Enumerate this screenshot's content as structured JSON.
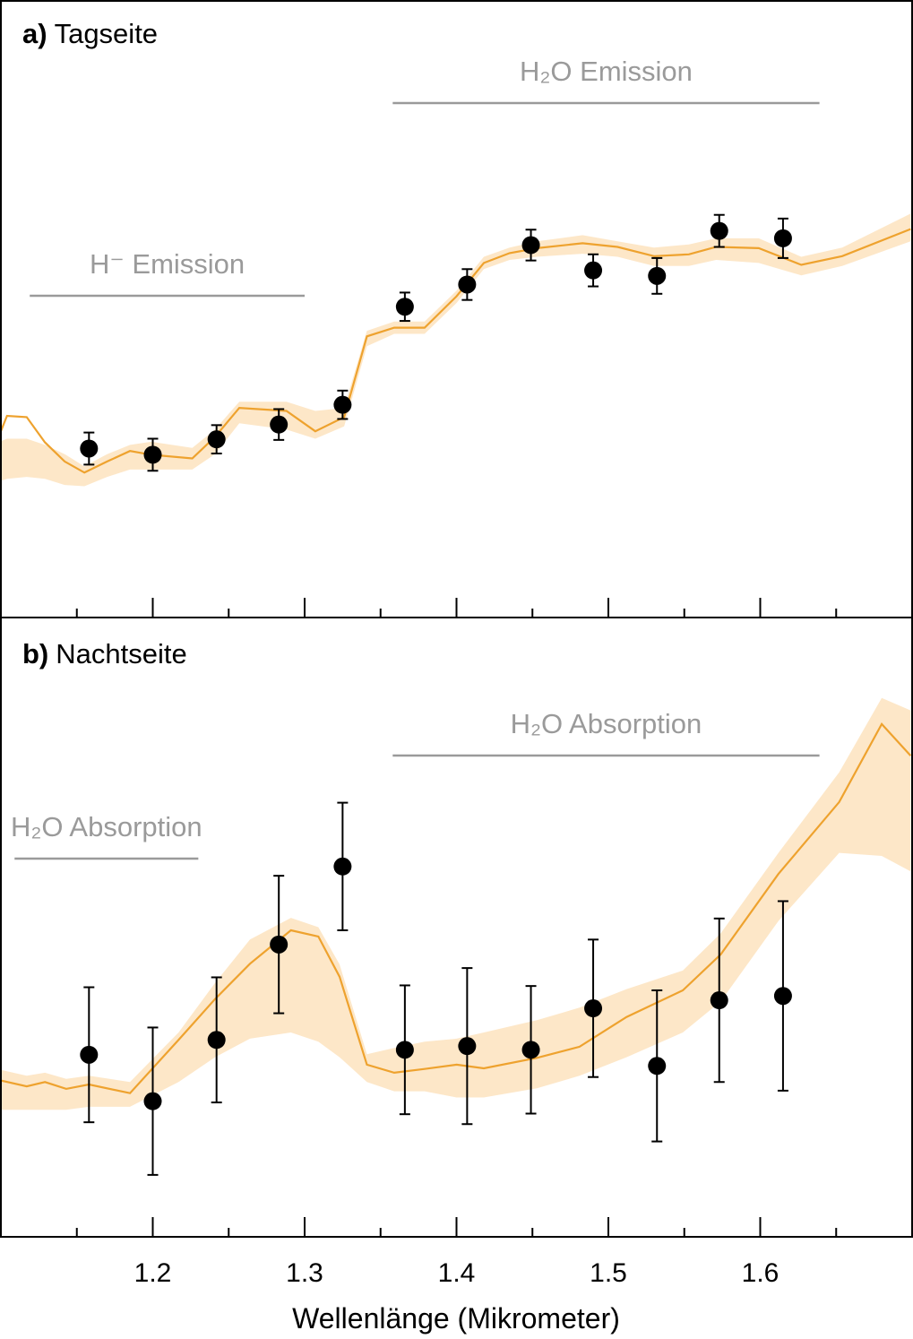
{
  "chart_data": {
    "type": "scatter",
    "xlabel": "Wellenlänge (Mikrometer)",
    "xlim": [
      1.1,
      1.7
    ],
    "xticks": [
      "1.2",
      "1.3",
      "1.4",
      "1.5",
      "1.6"
    ],
    "xtick_values": [
      1.2,
      1.3,
      1.4,
      1.5,
      1.6
    ],
    "minor_tick_step": 0.05,
    "grid": false,
    "colors": {
      "model_line": "#eea22e",
      "model_band": "#fde7c8",
      "points": "#000000",
      "annotation": "#9a9a9a"
    },
    "panels": [
      {
        "label_letter": "a)",
        "label_text": "Tagseite",
        "ylim": [
          0,
          100
        ],
        "annotations": [
          {
            "text": "H₂O Emission",
            "x_range": [
              1.358,
              1.639
            ]
          },
          {
            "text": "H⁻ Emission",
            "x_range": [
              1.119,
              1.3
            ]
          }
        ],
        "points": {
          "x": [
            1.158,
            1.2,
            1.242,
            1.283,
            1.325,
            1.366,
            1.407,
            1.449,
            1.49,
            1.532,
            1.573,
            1.615
          ],
          "y": [
            27.4,
            26.4,
            28.9,
            31.3,
            34.5,
            50.4,
            54.0,
            60.4,
            56.3,
            55.4,
            62.7,
            61.5
          ],
          "err": [
            2.6,
            2.6,
            2.3,
            2.5,
            2.3,
            2.3,
            2.5,
            2.5,
            2.6,
            2.9,
            2.6,
            3.2
          ]
        },
        "model": {
          "x": [
            1.099,
            1.104,
            1.117,
            1.129,
            1.142,
            1.155,
            1.17,
            1.185,
            1.199,
            1.226,
            1.241,
            1.257,
            1.288,
            1.307,
            1.326,
            1.341,
            1.359,
            1.379,
            1.4,
            1.418,
            1.435,
            1.453,
            1.483,
            1.506,
            1.53,
            1.553,
            1.571,
            1.599,
            1.627,
            1.654,
            1.699
          ],
          "y": [
            29.6,
            32.7,
            32.5,
            28.4,
            25.3,
            23.5,
            25.3,
            27.0,
            26.4,
            25.8,
            29.3,
            34.0,
            33.5,
            30.2,
            32.5,
            45.6,
            47.0,
            47.0,
            52.1,
            57.5,
            59.1,
            59.9,
            60.7,
            60.1,
            58.6,
            58.9,
            60.1,
            59.9,
            57.2,
            58.6,
            63.0
          ],
          "band_low": [
            22.1,
            22.5,
            22.8,
            22.5,
            21.5,
            21.3,
            22.8,
            24,
            24,
            24,
            26.5,
            31.5,
            30.5,
            29,
            31,
            44,
            46,
            46,
            51,
            56.5,
            58,
            58.5,
            59,
            58.5,
            57,
            57,
            58,
            57.5,
            55.5,
            57,
            61
          ],
          "band_high": [
            28.5,
            29,
            29,
            28,
            26.5,
            24.5,
            26.5,
            28,
            28.5,
            27.5,
            30.5,
            35,
            35,
            33.5,
            34,
            46.5,
            48,
            48,
            53,
            58.5,
            60,
            61,
            62,
            61,
            60,
            60.5,
            61.5,
            61.5,
            58.5,
            60,
            65.5
          ]
        }
      },
      {
        "label_letter": "b)",
        "label_text": "Nachtseite",
        "ylim": [
          0,
          100
        ],
        "annotations": [
          {
            "text": "H₂O Absorption",
            "x_range": [
              1.358,
              1.639
            ]
          },
          {
            "text": "H₂O Absorption",
            "x_range": [
              1.109,
              1.23
            ]
          }
        ],
        "points": {
          "x": [
            1.158,
            1.2,
            1.242,
            1.283,
            1.325,
            1.366,
            1.407,
            1.449,
            1.49,
            1.532,
            1.573,
            1.615
          ],
          "y": [
            29.4,
            21.9,
            31.8,
            47.2,
            59.8,
            30.2,
            30.8,
            30.2,
            36.9,
            27.6,
            38.2,
            38.9
          ],
          "err": [
            10.9,
            11.9,
            10.1,
            11.1,
            10.3,
            10.4,
            12.6,
            10.3,
            11.1,
            12.2,
            13.2,
            15.3
          ]
        },
        "model": {
          "x": [
            1.099,
            1.117,
            1.129,
            1.143,
            1.158,
            1.185,
            1.217,
            1.241,
            1.264,
            1.291,
            1.309,
            1.323,
            1.341,
            1.359,
            1.379,
            1.4,
            1.418,
            1.453,
            1.481,
            1.512,
            1.549,
            1.574,
            1.612,
            1.652,
            1.68,
            1.699
          ],
          "y": [
            25.3,
            24.3,
            25.0,
            23.9,
            24.6,
            23.2,
            31.8,
            38.4,
            44.1,
            49.5,
            48.5,
            42.0,
            27.8,
            26.5,
            27.1,
            27.8,
            27.2,
            28.9,
            30.7,
            35.5,
            39.8,
            45.6,
            58.6,
            70.2,
            82.8,
            77.7
          ],
          "band_low": [
            20.5,
            20.5,
            20.5,
            20.5,
            21,
            21,
            25,
            29,
            32,
            33,
            31.5,
            29,
            25,
            23.5,
            23.5,
            22.5,
            22.5,
            24,
            26,
            29,
            33,
            38,
            51,
            62,
            61.5,
            59
          ],
          "band_high": [
            27,
            26,
            26.5,
            25.5,
            26,
            25,
            33,
            41,
            48,
            51.5,
            50,
            44,
            29.5,
            30.5,
            31.5,
            32,
            33,
            35,
            37,
            40,
            43,
            49,
            62,
            75,
            87,
            85
          ]
        }
      }
    ]
  }
}
